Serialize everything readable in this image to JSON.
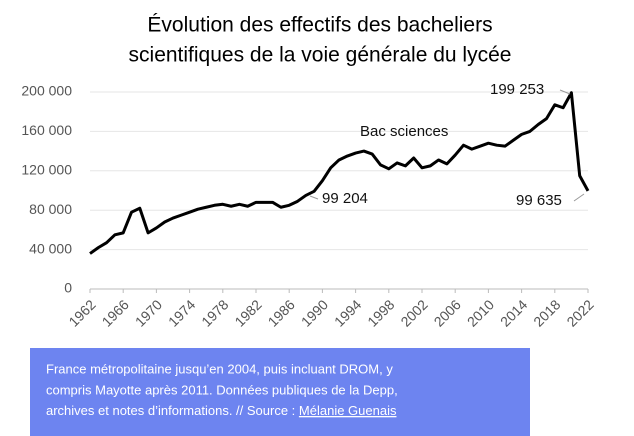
{
  "chart_data": {
    "type": "line",
    "title": [
      "Évolution des effectifs des bacheliers",
      "scientifiques de la voie générale du lycée"
    ],
    "x": [
      1962,
      1963,
      1964,
      1965,
      1966,
      1967,
      1968,
      1969,
      1970,
      1971,
      1972,
      1973,
      1974,
      1975,
      1976,
      1977,
      1978,
      1979,
      1980,
      1981,
      1982,
      1983,
      1984,
      1985,
      1986,
      1987,
      1988,
      1989,
      1990,
      1991,
      1992,
      1993,
      1994,
      1995,
      1996,
      1997,
      1998,
      1999,
      2000,
      2001,
      2002,
      2003,
      2004,
      2005,
      2006,
      2007,
      2008,
      2009,
      2010,
      2011,
      2012,
      2013,
      2014,
      2015,
      2016,
      2017,
      2018,
      2019,
      2020,
      2021,
      2022
    ],
    "series": [
      {
        "name": "Bac sciences",
        "color": "#000000",
        "values": [
          36000,
          42000,
          47000,
          55000,
          57000,
          78000,
          82000,
          57000,
          62000,
          68000,
          72000,
          75000,
          78000,
          81000,
          83000,
          85000,
          86000,
          84000,
          86000,
          84000,
          88000,
          88000,
          88000,
          83000,
          85000,
          89000,
          95000,
          99204,
          110000,
          123000,
          131000,
          135000,
          138000,
          140000,
          137000,
          126000,
          122000,
          128000,
          125000,
          133000,
          123000,
          125000,
          131000,
          127000,
          136000,
          146000,
          142000,
          145000,
          148000,
          146000,
          145000,
          151000,
          157000,
          160000,
          167000,
          173000,
          187000,
          184000,
          199253,
          115000,
          99635
        ]
      }
    ],
    "annotations": [
      "Bac sciences",
      "99 204",
      "199 253",
      "99 635"
    ],
    "xlim": [
      1962,
      2022
    ],
    "xticks": [
      1962,
      1966,
      1970,
      1974,
      1978,
      1982,
      1986,
      1990,
      1994,
      1998,
      2002,
      2006,
      2010,
      2014,
      2018,
      2022
    ],
    "ylim": [
      0,
      200000
    ],
    "yticks": [
      0,
      {
        "value": 40000,
        "label": "40 000"
      },
      {
        "value": 80000,
        "label": "80 000"
      },
      {
        "value": 120000,
        "label": "120 000"
      },
      {
        "value": 160000,
        "label": "160 000"
      },
      {
        "value": 200000,
        "label": "200 000"
      }
    ],
    "grid": true
  },
  "caption": {
    "lines": [
      "France métropolitaine jusqu’en 2004, puis incluant DROM, y",
      "compris Mayotte après 2011. Données publiques de la Depp,",
      "archives et notes d’informations. // Source : "
    ],
    "link": "Mélanie Guenais"
  }
}
